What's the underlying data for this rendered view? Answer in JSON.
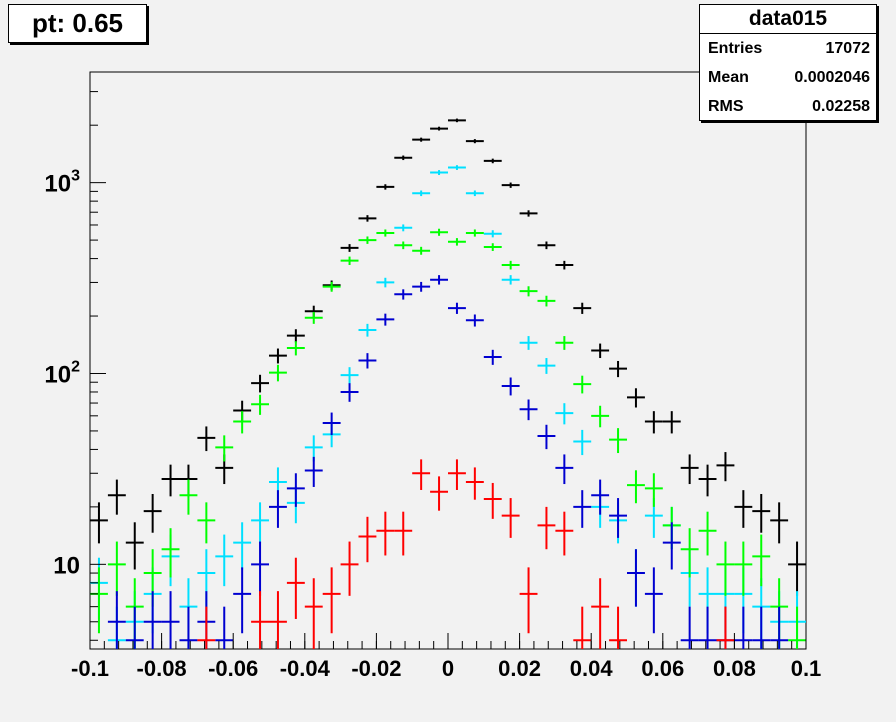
{
  "title": "pt: 0.65",
  "stats": {
    "name": "data015",
    "rows": [
      {
        "label": "Entries",
        "value": "17072"
      },
      {
        "label": "Mean",
        "value": "0.0002046"
      },
      {
        "label": "RMS",
        "value": "0.02258"
      }
    ]
  },
  "chart_data": {
    "type": "scatter",
    "log_y": true,
    "xlim": [
      -0.1,
      0.1
    ],
    "ylim": [
      3.6,
      3800
    ],
    "grid": false,
    "x_ticks": [
      "-0.1",
      "-0.08",
      "-0.06",
      "-0.04",
      "-0.02",
      "0",
      "0.02",
      "0.04",
      "0.06",
      "0.08",
      "0.1"
    ],
    "x_tick_values": [
      -0.1,
      -0.08,
      -0.06,
      -0.04,
      -0.02,
      0,
      0.02,
      0.04,
      0.06,
      0.08,
      0.1
    ],
    "y_ticks": [
      {
        "value": 10,
        "base": "10",
        "exp": ""
      },
      {
        "value": 100,
        "base": "10",
        "exp": "2"
      },
      {
        "value": 1000,
        "base": "10",
        "exp": "3"
      }
    ],
    "bin_width": 0.005,
    "series": [
      {
        "color": "#000000",
        "x": [
          -0.0975,
          -0.0925,
          -0.0875,
          -0.0825,
          -0.0775,
          -0.0725,
          -0.0675,
          -0.0625,
          -0.0575,
          -0.0525,
          -0.0475,
          -0.0425,
          -0.0375,
          -0.0325,
          -0.0275,
          -0.0225,
          -0.0175,
          -0.0125,
          -0.0075,
          -0.0025,
          0.0025,
          0.0075,
          0.0125,
          0.0175,
          0.0225,
          0.0275,
          0.0325,
          0.0375,
          0.0425,
          0.0475,
          0.0525,
          0.0575,
          0.0625,
          0.0675,
          0.0725,
          0.0775,
          0.0825,
          0.0875,
          0.0925,
          0.0975
        ],
        "y": [
          17,
          23,
          13,
          19,
          28,
          28,
          46,
          32,
          64,
          89,
          124,
          158,
          212,
          290,
          455,
          650,
          950,
          1350,
          1680,
          1920,
          2120,
          1650,
          1300,
          970,
          690,
          470,
          370,
          220,
          132,
          106,
          75,
          56,
          56,
          32,
          28,
          33,
          20,
          19,
          17,
          10
        ]
      },
      {
        "color": "#00e0ff",
        "x": [
          -0.0975,
          -0.0925,
          -0.0875,
          -0.0825,
          -0.0775,
          -0.0725,
          -0.0675,
          -0.0625,
          -0.0575,
          -0.0525,
          -0.0475,
          -0.0425,
          -0.0375,
          -0.0325,
          -0.0275,
          -0.0225,
          -0.0175,
          -0.0125,
          -0.0075,
          -0.0025,
          0.0025,
          0.0075,
          0.0125,
          0.0175,
          0.0225,
          0.0275,
          0.0325,
          0.0375,
          0.0425,
          0.0475,
          0.0525,
          0.0575,
          0.0625,
          0.0675,
          0.0725,
          0.0775,
          0.0825,
          0.0875,
          0.0925,
          0.0975
        ],
        "y": [
          8,
          4,
          5,
          7,
          11,
          6,
          9,
          11,
          13,
          17,
          27,
          21,
          41,
          48,
          98,
          169,
          300,
          580,
          880,
          1130,
          1200,
          880,
          540,
          310,
          145,
          110,
          62,
          44,
          20,
          17,
          9,
          18,
          16,
          9,
          7,
          7,
          7,
          6,
          5,
          5
        ]
      },
      {
        "color": "#00ff00",
        "x": [
          -0.0975,
          -0.0925,
          -0.0875,
          -0.0825,
          -0.0775,
          -0.0725,
          -0.0675,
          -0.0625,
          -0.0575,
          -0.0525,
          -0.0475,
          -0.0425,
          -0.0375,
          -0.0325,
          -0.0275,
          -0.0225,
          -0.0175,
          -0.0125,
          -0.0075,
          -0.0025,
          0.0025,
          0.0075,
          0.0125,
          0.0175,
          0.0225,
          0.0275,
          0.0325,
          0.0375,
          0.0425,
          0.0475,
          0.0525,
          0.0575,
          0.0625,
          0.0675,
          0.0725,
          0.0775,
          0.0825,
          0.0875,
          0.0925,
          0.0975
        ],
        "y": [
          7,
          10,
          6,
          9,
          12,
          23,
          17,
          41,
          56,
          69,
          101,
          136,
          196,
          285,
          390,
          500,
          545,
          470,
          440,
          550,
          490,
          545,
          460,
          370,
          270,
          240,
          145,
          88,
          60,
          45,
          26,
          25,
          16,
          12,
          15,
          10,
          10,
          11,
          6,
          4
        ]
      },
      {
        "color": "#0000d0",
        "x": [
          -0.0925,
          -0.0875,
          -0.0825,
          -0.0775,
          -0.0725,
          -0.0675,
          -0.0625,
          -0.0575,
          -0.0525,
          -0.0475,
          -0.0425,
          -0.0375,
          -0.0325,
          -0.0275,
          -0.0225,
          -0.0175,
          -0.0125,
          -0.0075,
          -0.0025,
          0.0025,
          0.0075,
          0.0125,
          0.0175,
          0.0225,
          0.0275,
          0.0325,
          0.0375,
          0.0425,
          0.0475,
          0.0525,
          0.0575,
          0.0625,
          0.0675,
          0.0725,
          0.0775,
          0.0825,
          0.0875,
          0.0925
        ],
        "y": [
          5,
          4,
          5,
          5,
          4,
          5,
          4,
          7,
          10,
          20,
          25,
          31,
          55,
          80,
          117,
          192,
          260,
          285,
          310,
          220,
          190,
          122,
          86,
          65,
          47,
          32,
          20,
          23,
          18,
          9,
          7,
          13,
          4,
          4,
          4,
          4,
          4,
          4
        ]
      },
      {
        "color": "#ff0000",
        "x": [
          -0.0675,
          -0.0525,
          -0.0475,
          -0.0425,
          -0.0375,
          -0.0325,
          -0.0275,
          -0.0225,
          -0.0175,
          -0.0125,
          -0.0075,
          -0.0025,
          0.0025,
          0.0075,
          0.0125,
          0.0175,
          0.0225,
          0.0275,
          0.0325,
          0.0375,
          0.0425,
          0.0475,
          0.0775
        ],
        "y": [
          4,
          5,
          5,
          8,
          6,
          7,
          10,
          14,
          15,
          15,
          30,
          24,
          30,
          27,
          22,
          18,
          7,
          16,
          15,
          4,
          6,
          4,
          4
        ]
      }
    ]
  }
}
